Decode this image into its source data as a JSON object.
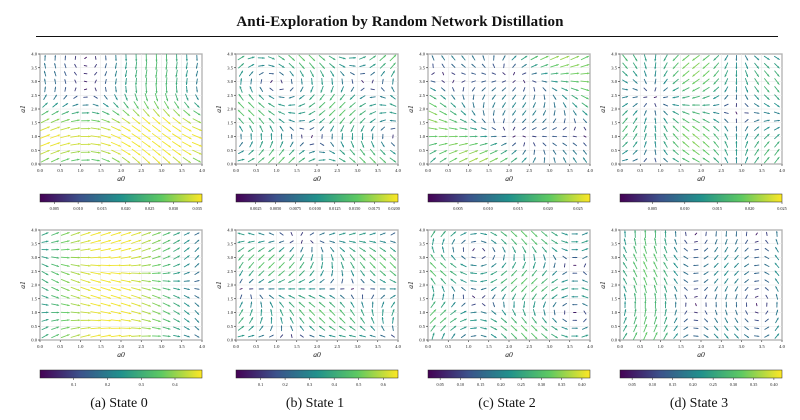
{
  "page": {
    "title": "Anti-Exploration by Random Network Distillation"
  },
  "colors": {
    "viridis": [
      "#440154",
      "#3b528b",
      "#21918c",
      "#5ec962",
      "#fde725"
    ]
  },
  "captions": [
    "(a) State 0",
    "(b) State 1",
    "(c) State 2",
    "(d) State 3"
  ],
  "chart_data": [
    {
      "type": "quiver",
      "row": 0,
      "col": 0,
      "xlabel": "a0",
      "ylabel": "a1",
      "xlim": [
        0,
        4
      ],
      "ylim": [
        0,
        4
      ],
      "grid": true,
      "xticks": [
        "0.0",
        "0.5",
        "1.0",
        "1.5",
        "2.0",
        "2.5",
        "3.0",
        "3.5",
        "4.0"
      ],
      "yticks": [
        "0.0",
        "0.5",
        "1.0",
        "1.5",
        "2.0",
        "2.5",
        "3.0",
        "3.5",
        "4.0"
      ],
      "colorbar_ticks": [
        "0.005",
        "0.010",
        "0.015",
        "0.020",
        "0.025",
        "0.030",
        "0.035"
      ],
      "colorbar_range": [
        0.002,
        0.036
      ]
    },
    {
      "type": "quiver",
      "row": 0,
      "col": 1,
      "xlabel": "a0",
      "ylabel": "a1",
      "xlim": [
        0,
        4
      ],
      "ylim": [
        0,
        4
      ],
      "grid": true,
      "xticks": [
        "0.0",
        "0.5",
        "1.0",
        "1.5",
        "2.0",
        "2.5",
        "3.0",
        "3.5",
        "4.0"
      ],
      "yticks": [
        "0.0",
        "0.5",
        "1.0",
        "1.5",
        "2.0",
        "2.5",
        "3.0",
        "3.5",
        "4.0"
      ],
      "colorbar_ticks": [
        "0.0025",
        "0.0050",
        "0.0075",
        "0.0100",
        "0.0125",
        "0.0150",
        "0.0175",
        "0.0200"
      ],
      "colorbar_range": [
        0.0,
        0.0205
      ]
    },
    {
      "type": "quiver",
      "row": 0,
      "col": 2,
      "xlabel": "a0",
      "ylabel": "a1",
      "xlim": [
        0,
        4
      ],
      "ylim": [
        0,
        4
      ],
      "grid": true,
      "xticks": [
        "0.0",
        "0.5",
        "1.0",
        "1.5",
        "2.0",
        "2.5",
        "3.0",
        "3.5",
        "4.0"
      ],
      "yticks": [
        "0.0",
        "0.5",
        "1.0",
        "1.5",
        "2.0",
        "2.5",
        "3.0",
        "3.5",
        "4.0"
      ],
      "colorbar_ticks": [
        "0.005",
        "0.010",
        "0.015",
        "0.020",
        "0.025"
      ],
      "colorbar_range": [
        0.0,
        0.027
      ]
    },
    {
      "type": "quiver",
      "row": 0,
      "col": 3,
      "xlabel": "a0",
      "ylabel": "a1",
      "xlim": [
        0,
        4
      ],
      "ylim": [
        0,
        4
      ],
      "grid": true,
      "xticks": [
        "0.0",
        "0.5",
        "1.0",
        "1.5",
        "2.0",
        "2.5",
        "3.0",
        "3.5",
        "4.0"
      ],
      "yticks": [
        "0.0",
        "0.5",
        "1.0",
        "1.5",
        "2.0",
        "2.5",
        "3.0",
        "3.5",
        "4.0"
      ],
      "colorbar_ticks": [
        "0.005",
        "0.010",
        "0.015",
        "0.020",
        "0.025"
      ],
      "colorbar_range": [
        0.0,
        0.025
      ]
    },
    {
      "type": "quiver",
      "row": 1,
      "col": 0,
      "xlabel": "a0",
      "ylabel": "a1",
      "xlim": [
        0,
        4
      ],
      "ylim": [
        0,
        4
      ],
      "grid": true,
      "xticks": [
        "0.0",
        "0.5",
        "1.0",
        "1.5",
        "2.0",
        "2.5",
        "3.0",
        "3.5",
        "4.0"
      ],
      "yticks": [
        "0.0",
        "0.5",
        "1.0",
        "1.5",
        "2.0",
        "2.5",
        "3.0",
        "3.5",
        "4.0"
      ],
      "colorbar_ticks": [
        "0.1",
        "0.2",
        "0.3",
        "0.4"
      ],
      "colorbar_range": [
        0.0,
        0.48
      ]
    },
    {
      "type": "quiver",
      "row": 1,
      "col": 1,
      "xlabel": "a0",
      "ylabel": "a1",
      "xlim": [
        0,
        4
      ],
      "ylim": [
        0,
        4
      ],
      "grid": true,
      "xticks": [
        "0.0",
        "0.5",
        "1.0",
        "1.5",
        "2.0",
        "2.5",
        "3.0",
        "3.5",
        "4.0"
      ],
      "yticks": [
        "0.0",
        "0.5",
        "1.0",
        "1.5",
        "2.0",
        "2.5",
        "3.0",
        "3.5",
        "4.0"
      ],
      "colorbar_ticks": [
        "0.1",
        "0.2",
        "0.3",
        "0.4",
        "0.5",
        "0.6"
      ],
      "colorbar_range": [
        0.0,
        0.66
      ]
    },
    {
      "type": "quiver",
      "row": 1,
      "col": 2,
      "xlabel": "a0",
      "ylabel": "a1",
      "xlim": [
        0,
        4
      ],
      "ylim": [
        0,
        4
      ],
      "grid": true,
      "xticks": [
        "0.0",
        "0.5",
        "1.0",
        "1.5",
        "2.0",
        "2.5",
        "3.0",
        "3.5",
        "4.0"
      ],
      "yticks": [
        "0.0",
        "0.5",
        "1.0",
        "1.5",
        "2.0",
        "2.5",
        "3.0",
        "3.5",
        "4.0"
      ],
      "colorbar_ticks": [
        "0.05",
        "0.10",
        "0.15",
        "0.20",
        "0.25",
        "0.30",
        "0.35",
        "0.40"
      ],
      "colorbar_range": [
        0.02,
        0.42
      ]
    },
    {
      "type": "quiver",
      "row": 1,
      "col": 3,
      "xlabel": "a0",
      "ylabel": "a1",
      "xlim": [
        0,
        4
      ],
      "ylim": [
        0,
        4
      ],
      "grid": true,
      "xticks": [
        "0.0",
        "0.5",
        "1.0",
        "1.5",
        "2.0",
        "2.5",
        "3.0",
        "3.5",
        "4.0"
      ],
      "yticks": [
        "0.0",
        "0.5",
        "1.0",
        "1.5",
        "2.0",
        "2.5",
        "3.0",
        "3.5",
        "4.0"
      ],
      "colorbar_ticks": [
        "0.05",
        "0.10",
        "0.15",
        "0.20",
        "0.25",
        "0.30",
        "0.35",
        "0.40"
      ],
      "colorbar_range": [
        0.02,
        0.42
      ]
    }
  ]
}
